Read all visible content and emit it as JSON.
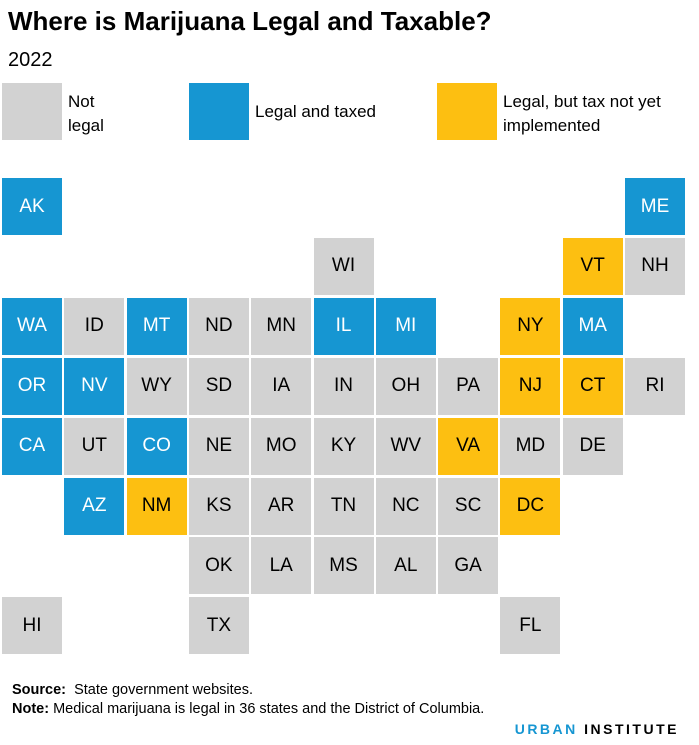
{
  "title": "Where is Marijuana Legal and Taxable?",
  "subtitle": "2022",
  "colors": {
    "not_legal": "#d2d2d2",
    "legal_taxed": "#1696d2",
    "legal_not_taxed": "#fdbf11"
  },
  "legend": [
    {
      "key": "not_legal",
      "label": "Not legal"
    },
    {
      "key": "legal_taxed",
      "label": "Legal and taxed"
    },
    {
      "key": "legal_not_taxed",
      "label": "Legal, but tax not yet implemented"
    }
  ],
  "states": [
    {
      "abbr": "AK",
      "row": 0,
      "col": 0,
      "status": "legal_taxed"
    },
    {
      "abbr": "ME",
      "row": 0,
      "col": 10,
      "status": "legal_taxed"
    },
    {
      "abbr": "WI",
      "row": 1,
      "col": 5,
      "status": "not_legal"
    },
    {
      "abbr": "VT",
      "row": 1,
      "col": 9,
      "status": "legal_not_taxed"
    },
    {
      "abbr": "NH",
      "row": 1,
      "col": 10,
      "status": "not_legal"
    },
    {
      "abbr": "WA",
      "row": 2,
      "col": 0,
      "status": "legal_taxed"
    },
    {
      "abbr": "ID",
      "row": 2,
      "col": 1,
      "status": "not_legal"
    },
    {
      "abbr": "MT",
      "row": 2,
      "col": 2,
      "status": "legal_taxed"
    },
    {
      "abbr": "ND",
      "row": 2,
      "col": 3,
      "status": "not_legal"
    },
    {
      "abbr": "MN",
      "row": 2,
      "col": 4,
      "status": "not_legal"
    },
    {
      "abbr": "IL",
      "row": 2,
      "col": 5,
      "status": "legal_taxed"
    },
    {
      "abbr": "MI",
      "row": 2,
      "col": 6,
      "status": "legal_taxed"
    },
    {
      "abbr": "NY",
      "row": 2,
      "col": 8,
      "status": "legal_not_taxed"
    },
    {
      "abbr": "MA",
      "row": 2,
      "col": 9,
      "status": "legal_taxed"
    },
    {
      "abbr": "OR",
      "row": 3,
      "col": 0,
      "status": "legal_taxed"
    },
    {
      "abbr": "NV",
      "row": 3,
      "col": 1,
      "status": "legal_taxed"
    },
    {
      "abbr": "WY",
      "row": 3,
      "col": 2,
      "status": "not_legal"
    },
    {
      "abbr": "SD",
      "row": 3,
      "col": 3,
      "status": "not_legal"
    },
    {
      "abbr": "IA",
      "row": 3,
      "col": 4,
      "status": "not_legal"
    },
    {
      "abbr": "IN",
      "row": 3,
      "col": 5,
      "status": "not_legal"
    },
    {
      "abbr": "OH",
      "row": 3,
      "col": 6,
      "status": "not_legal"
    },
    {
      "abbr": "PA",
      "row": 3,
      "col": 7,
      "status": "not_legal"
    },
    {
      "abbr": "NJ",
      "row": 3,
      "col": 8,
      "status": "legal_not_taxed"
    },
    {
      "abbr": "CT",
      "row": 3,
      "col": 9,
      "status": "legal_not_taxed"
    },
    {
      "abbr": "RI",
      "row": 3,
      "col": 10,
      "status": "not_legal"
    },
    {
      "abbr": "CA",
      "row": 4,
      "col": 0,
      "status": "legal_taxed"
    },
    {
      "abbr": "UT",
      "row": 4,
      "col": 1,
      "status": "not_legal"
    },
    {
      "abbr": "CO",
      "row": 4,
      "col": 2,
      "status": "legal_taxed"
    },
    {
      "abbr": "NE",
      "row": 4,
      "col": 3,
      "status": "not_legal"
    },
    {
      "abbr": "MO",
      "row": 4,
      "col": 4,
      "status": "not_legal"
    },
    {
      "abbr": "KY",
      "row": 4,
      "col": 5,
      "status": "not_legal"
    },
    {
      "abbr": "WV",
      "row": 4,
      "col": 6,
      "status": "not_legal"
    },
    {
      "abbr": "VA",
      "row": 4,
      "col": 7,
      "status": "legal_not_taxed"
    },
    {
      "abbr": "MD",
      "row": 4,
      "col": 8,
      "status": "not_legal"
    },
    {
      "abbr": "DE",
      "row": 4,
      "col": 9,
      "status": "not_legal"
    },
    {
      "abbr": "AZ",
      "row": 5,
      "col": 1,
      "status": "legal_taxed"
    },
    {
      "abbr": "NM",
      "row": 5,
      "col": 2,
      "status": "legal_not_taxed"
    },
    {
      "abbr": "KS",
      "row": 5,
      "col": 3,
      "status": "not_legal"
    },
    {
      "abbr": "AR",
      "row": 5,
      "col": 4,
      "status": "not_legal"
    },
    {
      "abbr": "TN",
      "row": 5,
      "col": 5,
      "status": "not_legal"
    },
    {
      "abbr": "NC",
      "row": 5,
      "col": 6,
      "status": "not_legal"
    },
    {
      "abbr": "SC",
      "row": 5,
      "col": 7,
      "status": "not_legal"
    },
    {
      "abbr": "DC",
      "row": 5,
      "col": 8,
      "status": "legal_not_taxed"
    },
    {
      "abbr": "OK",
      "row": 6,
      "col": 3,
      "status": "not_legal"
    },
    {
      "abbr": "LA",
      "row": 6,
      "col": 4,
      "status": "not_legal"
    },
    {
      "abbr": "MS",
      "row": 6,
      "col": 5,
      "status": "not_legal"
    },
    {
      "abbr": "AL",
      "row": 6,
      "col": 6,
      "status": "not_legal"
    },
    {
      "abbr": "GA",
      "row": 6,
      "col": 7,
      "status": "not_legal"
    },
    {
      "abbr": "HI",
      "row": 7,
      "col": 0,
      "status": "not_legal"
    },
    {
      "abbr": "TX",
      "row": 7,
      "col": 3,
      "status": "not_legal"
    },
    {
      "abbr": "FL",
      "row": 7,
      "col": 8,
      "status": "not_legal"
    }
  ],
  "footer": {
    "source_label": "Source:",
    "source_text": "State government websites.",
    "note_label": "Note:",
    "note_text": "Medical marijuana is legal in 36 states and the District of Columbia.",
    "logo_a": "URBAN",
    "logo_b": "INSTITUTE"
  }
}
